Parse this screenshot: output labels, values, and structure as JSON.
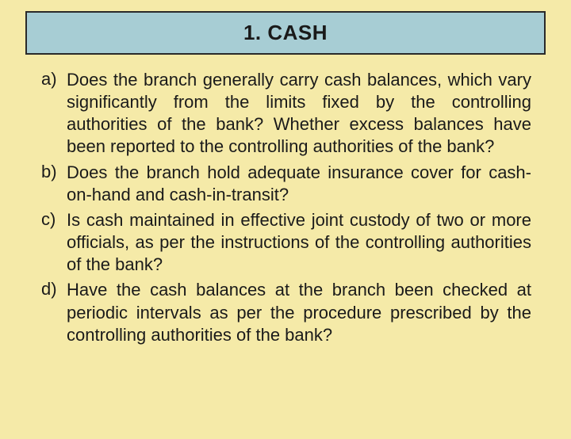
{
  "colors": {
    "background": "#f5eaa8",
    "title_box_bg": "#a7cdd4",
    "title_box_border": "#2a2a2a",
    "text": "#1a1a1a"
  },
  "typography": {
    "title_fontsize": 26,
    "title_fontweight": "bold",
    "body_fontsize": 22,
    "body_lineheight": 1.28,
    "body_align": "justify",
    "font_family": "Arial"
  },
  "title": "1. CASH",
  "items": [
    {
      "marker": "a)",
      "text": "Does the branch generally carry cash balances, which vary significantly from the limits fixed by the controlling authorities of the bank? Whether excess balances have been reported to the controlling authorities of the bank?"
    },
    {
      "marker": "b)",
      "text": "Does the branch hold adequate insurance cover for cash-on-hand and cash-in-transit?"
    },
    {
      "marker": "c)",
      "text": "Is cash maintained in effective joint custody of two or more officials, as per the instructions of the controlling authorities of the bank?"
    },
    {
      "marker": "d)",
      "text": "Have the cash balances at the branch been checked at periodic intervals as per the procedure prescribed by the controlling authorities of the bank?"
    }
  ]
}
